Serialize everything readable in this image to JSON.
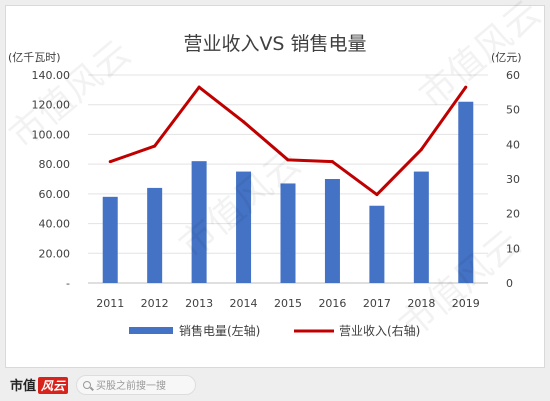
{
  "watermark": {
    "text": "市值风云"
  },
  "footer": {
    "brand": "市值",
    "brand_tag": "风云",
    "search_placeholder": "买股之前搜一搜"
  },
  "chart_data": {
    "type": "bar+line",
    "title": "营业收入VS 销售电量",
    "left_axis_label": "(亿千瓦时)",
    "right_axis_label": "(亿元)",
    "categories": [
      "2011",
      "2012",
      "2013",
      "2014",
      "2015",
      "2016",
      "2017",
      "2018",
      "2019"
    ],
    "left_ticks": [
      "-",
      "20.00",
      "40.00",
      "60.00",
      "80.00",
      "100.00",
      "120.00",
      "140.00"
    ],
    "right_ticks": [
      "0",
      "10",
      "20",
      "30",
      "40",
      "50",
      "60"
    ],
    "ylim_left": [
      0,
      140
    ],
    "ylim_right": [
      0,
      60
    ],
    "series": [
      {
        "name": "销售电量(左轴)",
        "kind": "bar",
        "axis": "left",
        "color": "#4472c4",
        "values": [
          58,
          64,
          82,
          75,
          67,
          70,
          52,
          75,
          122
        ]
      },
      {
        "name": "营业收入(右轴)",
        "kind": "line",
        "axis": "right",
        "color": "#c00000",
        "values": [
          35,
          39.5,
          56.5,
          46.5,
          35.5,
          35,
          25.5,
          38.5,
          56.5
        ]
      }
    ],
    "legend_position": "bottom",
    "grid": true
  }
}
